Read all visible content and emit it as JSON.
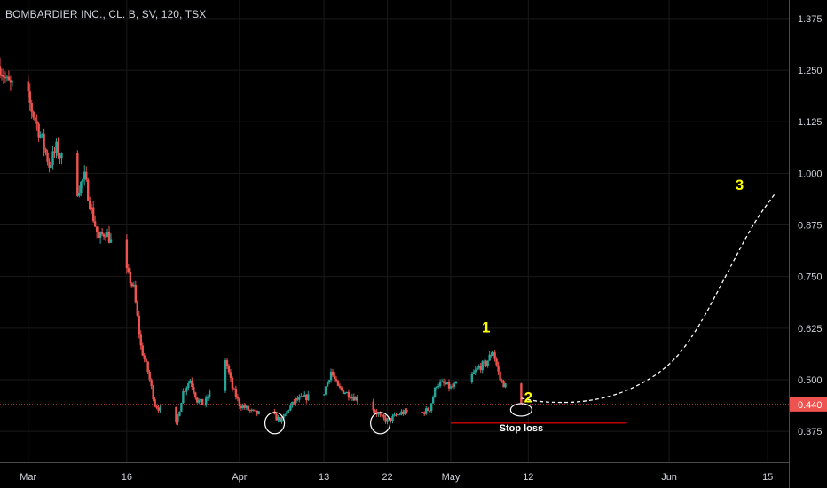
{
  "symbol_title": "BOMBARDIER INC., CL. B, SV, 120, TSX",
  "colors": {
    "background": "#000000",
    "grid": "#1a1a1a",
    "axis_text": "#d1d4dc",
    "axis_line": "#4a4a4a",
    "up_candle": "#26a69a",
    "down_candle": "#ef5350",
    "price_line": "#ef5350",
    "price_badge": "#ef5350",
    "annotation_number": "#ffff00",
    "annotation_white": "#ffffff",
    "stop_loss_line": "#ff0000"
  },
  "chart_data": {
    "type": "candlestick",
    "symbol": "BOMBARDIER INC., CL. B",
    "interval": "120",
    "exchange": "TSX",
    "y_axis": {
      "position": "right",
      "ylim": [
        0.3,
        1.42
      ],
      "ticks": [
        "1.375",
        "1.250",
        "1.125",
        "1.000",
        "0.875",
        "0.750",
        "0.625",
        "0.500",
        "0.375"
      ],
      "tick_values": [
        1.375,
        1.25,
        1.125,
        1.0,
        0.875,
        0.75,
        0.625,
        0.5,
        0.375
      ]
    },
    "x_axis": {
      "tick_labels": [
        "Mar",
        "16",
        "Apr",
        "13",
        "22",
        "May",
        "12",
        "Jun",
        "15"
      ],
      "tick_dates": [
        "2020-03-02",
        "2020-03-16",
        "2020-04-01",
        "2020-04-13",
        "2020-04-22",
        "2020-05-01",
        "2020-05-12",
        "2020-06-01",
        "2020-06-15"
      ],
      "range": [
        "2020-02-27",
        "2020-06-18"
      ]
    },
    "last_price": 0.44,
    "last_price_label": "0.440",
    "price_path": [
      [
        "2020-02-27",
        1.26
      ],
      [
        "2020-02-28",
        1.22
      ],
      [
        "2020-03-02",
        1.18
      ],
      [
        "2020-03-04",
        1.08
      ],
      [
        "2020-03-05",
        1.02
      ],
      [
        "2020-03-06",
        1.06
      ],
      [
        "2020-03-09",
        0.96
      ],
      [
        "2020-03-10",
        0.99
      ],
      [
        "2020-03-11",
        0.91
      ],
      [
        "2020-03-12",
        0.84
      ],
      [
        "2020-03-13",
        0.86
      ],
      [
        "2020-03-16",
        0.76
      ],
      [
        "2020-03-17",
        0.72
      ],
      [
        "2020-03-18",
        0.58
      ],
      [
        "2020-03-19",
        0.52
      ],
      [
        "2020-03-20",
        0.44
      ],
      [
        "2020-03-23",
        0.39
      ],
      [
        "2020-03-24",
        0.47
      ],
      [
        "2020-03-25",
        0.5
      ],
      [
        "2020-03-26",
        0.45
      ],
      [
        "2020-03-27",
        0.44
      ],
      [
        "2020-03-30",
        0.55
      ],
      [
        "2020-03-31",
        0.48
      ],
      [
        "2020-04-01",
        0.44
      ],
      [
        "2020-04-02",
        0.43
      ],
      [
        "2020-04-03",
        0.42
      ],
      [
        "2020-04-06",
        0.41
      ],
      [
        "2020-04-07",
        0.4
      ],
      [
        "2020-04-08",
        0.43
      ],
      [
        "2020-04-09",
        0.45
      ],
      [
        "2020-04-13",
        0.47
      ],
      [
        "2020-04-14",
        0.52
      ],
      [
        "2020-04-15",
        0.48
      ],
      [
        "2020-04-16",
        0.47
      ],
      [
        "2020-04-17",
        0.46
      ],
      [
        "2020-04-20",
        0.43
      ],
      [
        "2020-04-21",
        0.41
      ],
      [
        "2020-04-22",
        0.4
      ],
      [
        "2020-04-23",
        0.41
      ],
      [
        "2020-04-24",
        0.42
      ],
      [
        "2020-04-27",
        0.42
      ],
      [
        "2020-04-28",
        0.43
      ],
      [
        "2020-04-29",
        0.49
      ],
      [
        "2020-04-30",
        0.49
      ],
      [
        "2020-05-01",
        0.48
      ],
      [
        "2020-05-04",
        0.51
      ],
      [
        "2020-05-05",
        0.53
      ],
      [
        "2020-05-06",
        0.54
      ],
      [
        "2020-05-07",
        0.57
      ],
      [
        "2020-05-08",
        0.5
      ],
      [
        "2020-05-11",
        0.44
      ]
    ],
    "annotations": [
      {
        "label": "1",
        "date": "2020-05-06",
        "price": 0.615
      },
      {
        "label": "2",
        "date": "2020-05-12",
        "price": 0.445
      },
      {
        "label": "3",
        "date": "2020-06-11",
        "price": 0.96
      },
      {
        "label": "Stop loss",
        "date": "2020-05-11",
        "price": 0.375
      }
    ],
    "stop_loss": {
      "price": 0.395,
      "from": "2020-05-01",
      "to": "2020-05-26"
    },
    "highlight_circles": [
      {
        "date": "2020-04-06",
        "price": 0.395
      },
      {
        "date": "2020-04-21",
        "price": 0.395
      },
      {
        "date": "2020-05-11",
        "price": 0.427
      }
    ],
    "projection": {
      "style": "dashed",
      "points": [
        [
          "2020-05-11",
          0.455
        ],
        [
          "2020-05-14",
          0.445
        ],
        [
          "2020-05-20",
          0.445
        ],
        [
          "2020-05-26",
          0.47
        ],
        [
          "2020-06-01",
          0.53
        ],
        [
          "2020-06-05",
          0.62
        ],
        [
          "2020-06-09",
          0.75
        ],
        [
          "2020-06-13",
          0.88
        ],
        [
          "2020-06-16",
          0.95
        ]
      ]
    },
    "grid": true,
    "legend": "none"
  }
}
